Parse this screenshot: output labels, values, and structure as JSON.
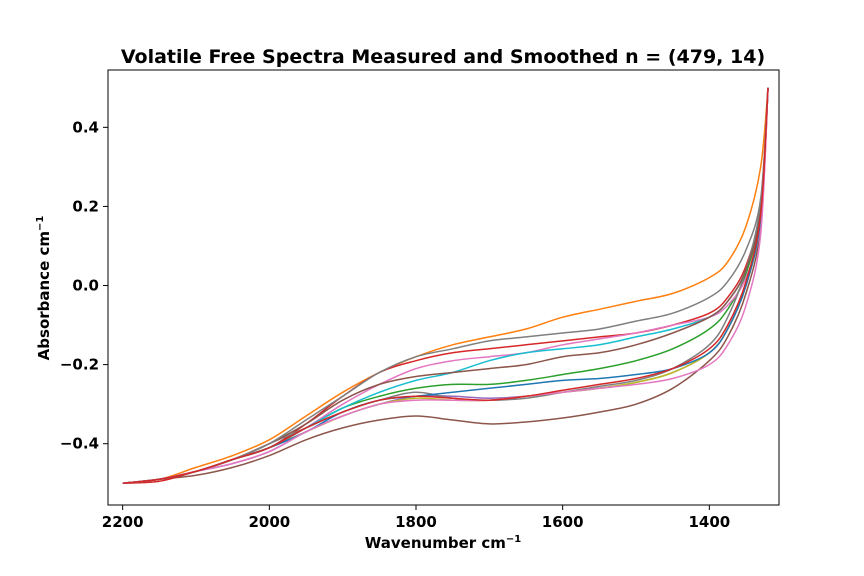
{
  "chart_data": {
    "type": "line",
    "title": "Volatile Free Spectra Measured and Smoothed n = (479, 14)",
    "xlabel": "Wavenumber cm",
    "xlabel_sup": "−1",
    "ylabel": "Absorbance cm",
    "ylabel_sup": "−1",
    "xlim": [
      2220,
      1305
    ],
    "ylim": [
      -0.555,
      0.545
    ],
    "x_inverted": true,
    "x_ticks": [
      2200,
      2000,
      1800,
      1600,
      1400
    ],
    "x_tick_labels": [
      "2200",
      "2000",
      "1800",
      "1600",
      "1400"
    ],
    "y_ticks": [
      -0.4,
      -0.2,
      0.0,
      0.2,
      0.4
    ],
    "y_tick_labels": [
      "−0.4",
      "−0.2",
      "0.0",
      "0.2",
      "0.4"
    ],
    "grid": false,
    "legend": "none",
    "x": [
      2200,
      2150,
      2100,
      2050,
      2000,
      1950,
      1900,
      1850,
      1800,
      1750,
      1700,
      1650,
      1600,
      1550,
      1500,
      1450,
      1400,
      1375,
      1350,
      1330,
      1320
    ],
    "series": [
      {
        "color": "#ff7f0e",
        "values": [
          -0.5,
          -0.49,
          -0.46,
          -0.43,
          -0.39,
          -0.33,
          -0.27,
          -0.22,
          -0.18,
          -0.15,
          -0.13,
          -0.11,
          -0.08,
          -0.06,
          -0.04,
          -0.02,
          0.02,
          0.06,
          0.15,
          0.3,
          0.5
        ]
      },
      {
        "color": "#8c564b",
        "values": [
          -0.5,
          -0.49,
          -0.48,
          -0.46,
          -0.43,
          -0.39,
          -0.36,
          -0.34,
          -0.33,
          -0.34,
          -0.35,
          -0.345,
          -0.335,
          -0.32,
          -0.3,
          -0.26,
          -0.19,
          -0.13,
          -0.02,
          0.15,
          0.5
        ]
      },
      {
        "color": "#2ca02c",
        "values": [
          -0.5,
          -0.49,
          -0.47,
          -0.44,
          -0.41,
          -0.36,
          -0.31,
          -0.28,
          -0.26,
          -0.25,
          -0.25,
          -0.24,
          -0.225,
          -0.21,
          -0.19,
          -0.16,
          -0.11,
          -0.06,
          0.03,
          0.19,
          0.5
        ]
      },
      {
        "color": "#d62728",
        "values": [
          -0.5,
          -0.495,
          -0.47,
          -0.44,
          -0.41,
          -0.35,
          -0.28,
          -0.22,
          -0.19,
          -0.17,
          -0.16,
          -0.15,
          -0.14,
          -0.13,
          -0.12,
          -0.1,
          -0.07,
          -0.03,
          0.05,
          0.2,
          0.5
        ]
      },
      {
        "color": "#9467bd",
        "values": [
          -0.5,
          -0.49,
          -0.47,
          -0.45,
          -0.42,
          -0.37,
          -0.33,
          -0.3,
          -0.28,
          -0.28,
          -0.285,
          -0.28,
          -0.27,
          -0.26,
          -0.245,
          -0.22,
          -0.17,
          -0.11,
          0.0,
          0.17,
          0.5
        ]
      },
      {
        "color": "#e377c2",
        "values": [
          -0.5,
          -0.49,
          -0.47,
          -0.44,
          -0.41,
          -0.36,
          -0.3,
          -0.25,
          -0.21,
          -0.19,
          -0.18,
          -0.17,
          -0.15,
          -0.135,
          -0.12,
          -0.1,
          -0.08,
          -0.05,
          0.02,
          0.16,
          0.5
        ]
      },
      {
        "color": "#7f7f7f",
        "values": [
          -0.5,
          -0.49,
          -0.47,
          -0.44,
          -0.4,
          -0.36,
          -0.32,
          -0.29,
          -0.27,
          -0.285,
          -0.29,
          -0.285,
          -0.27,
          -0.255,
          -0.24,
          -0.21,
          -0.15,
          -0.08,
          0.04,
          0.21,
          0.5
        ]
      },
      {
        "color": "#bcbd22",
        "values": [
          -0.5,
          -0.49,
          -0.47,
          -0.44,
          -0.41,
          -0.37,
          -0.33,
          -0.3,
          -0.285,
          -0.29,
          -0.29,
          -0.28,
          -0.27,
          -0.26,
          -0.245,
          -0.22,
          -0.17,
          -0.11,
          0.0,
          0.17,
          0.5
        ]
      },
      {
        "color": "#17becf",
        "values": [
          -0.5,
          -0.49,
          -0.47,
          -0.44,
          -0.41,
          -0.36,
          -0.31,
          -0.27,
          -0.24,
          -0.22,
          -0.19,
          -0.17,
          -0.16,
          -0.15,
          -0.13,
          -0.11,
          -0.08,
          -0.04,
          0.04,
          0.19,
          0.5
        ]
      },
      {
        "color": "#1f77b4",
        "values": [
          -0.5,
          -0.49,
          -0.47,
          -0.44,
          -0.41,
          -0.37,
          -0.32,
          -0.29,
          -0.28,
          -0.27,
          -0.26,
          -0.25,
          -0.24,
          -0.235,
          -0.225,
          -0.21,
          -0.17,
          -0.11,
          0.0,
          0.17,
          0.5
        ]
      },
      {
        "color": "#8c564b",
        "values": [
          -0.5,
          -0.49,
          -0.47,
          -0.44,
          -0.4,
          -0.35,
          -0.29,
          -0.25,
          -0.23,
          -0.22,
          -0.21,
          -0.2,
          -0.18,
          -0.17,
          -0.15,
          -0.12,
          -0.08,
          -0.04,
          0.04,
          0.19,
          0.5
        ]
      },
      {
        "color": "#e377c2",
        "values": [
          -0.5,
          -0.49,
          -0.47,
          -0.45,
          -0.42,
          -0.37,
          -0.33,
          -0.3,
          -0.29,
          -0.29,
          -0.29,
          -0.28,
          -0.27,
          -0.26,
          -0.25,
          -0.235,
          -0.2,
          -0.15,
          -0.05,
          0.13,
          0.5
        ]
      },
      {
        "color": "#7f7f7f",
        "values": [
          -0.5,
          -0.49,
          -0.47,
          -0.44,
          -0.4,
          -0.34,
          -0.28,
          -0.22,
          -0.18,
          -0.16,
          -0.14,
          -0.13,
          -0.12,
          -0.11,
          -0.09,
          -0.07,
          -0.03,
          0.01,
          0.09,
          0.22,
          0.5
        ]
      },
      {
        "color": "#d62728",
        "values": [
          -0.5,
          -0.49,
          -0.47,
          -0.44,
          -0.41,
          -0.36,
          -0.32,
          -0.29,
          -0.28,
          -0.285,
          -0.29,
          -0.28,
          -0.265,
          -0.25,
          -0.235,
          -0.21,
          -0.16,
          -0.1,
          0.01,
          0.18,
          0.5
        ]
      }
    ]
  }
}
